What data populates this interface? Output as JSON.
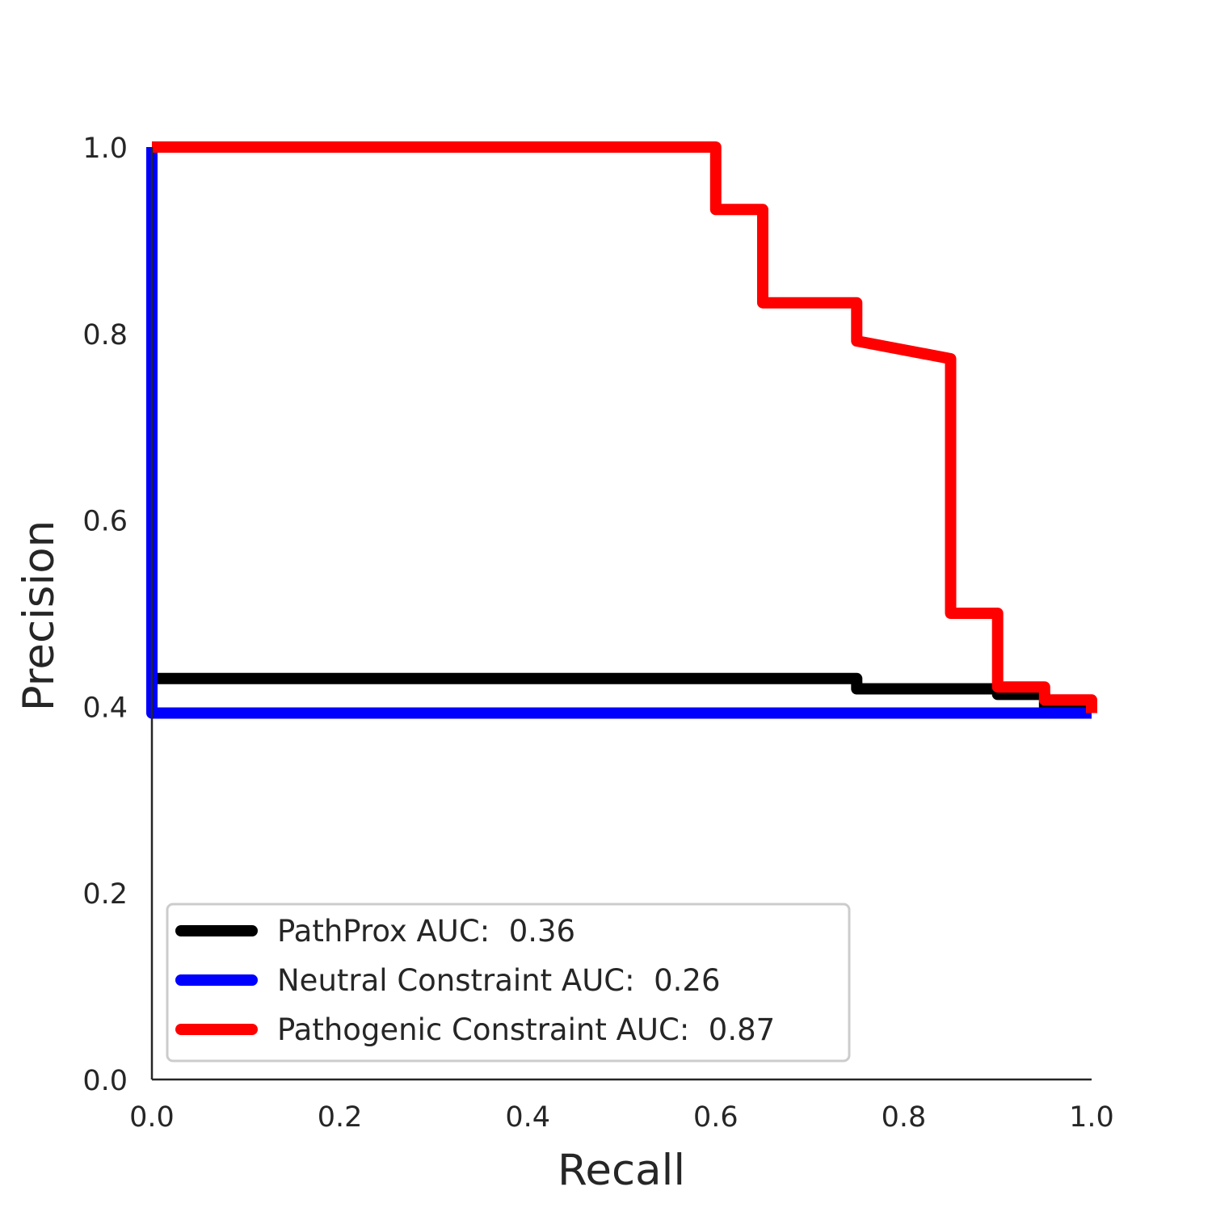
{
  "chart_data": {
    "type": "line",
    "title": "",
    "xlabel": "Recall",
    "ylabel": "Precision",
    "xlim": [
      0.0,
      1.0
    ],
    "ylim": [
      0.0,
      1.0
    ],
    "xticks": [
      "0.0",
      "0.2",
      "0.4",
      "0.6",
      "0.8",
      "1.0"
    ],
    "yticks": [
      "0.0",
      "0.2",
      "0.4",
      "0.6",
      "0.8",
      "1.0"
    ],
    "grid": false,
    "legend_position": "lower-left",
    "series": [
      {
        "name": "PathProx AUC:  0.36",
        "color": "#000000",
        "x": [
          0.0,
          0.0,
          0.75,
          0.75,
          0.9,
          0.9,
          0.95,
          0.95,
          1.0
        ],
        "y": [
          1.0,
          0.43,
          0.43,
          0.419,
          0.419,
          0.413,
          0.413,
          0.4,
          0.4
        ]
      },
      {
        "name": "Neutral Constraint AUC:  0.26",
        "color": "#0000ff",
        "x": [
          0.0,
          0.0,
          1.0
        ],
        "y": [
          1.0,
          0.393,
          0.393
        ]
      },
      {
        "name": "Pathogenic Constraint AUC:  0.87",
        "color": "#ff0000",
        "x": [
          0.0,
          0.6,
          0.6,
          0.65,
          0.65,
          0.75,
          0.75,
          0.85,
          0.85,
          0.9,
          0.9,
          0.95,
          0.95,
          1.0,
          1.0
        ],
        "y": [
          1.0,
          1.0,
          0.933,
          0.933,
          0.833,
          0.833,
          0.792,
          0.773,
          0.5,
          0.5,
          0.421,
          0.421,
          0.407,
          0.407,
          0.393
        ]
      }
    ]
  }
}
